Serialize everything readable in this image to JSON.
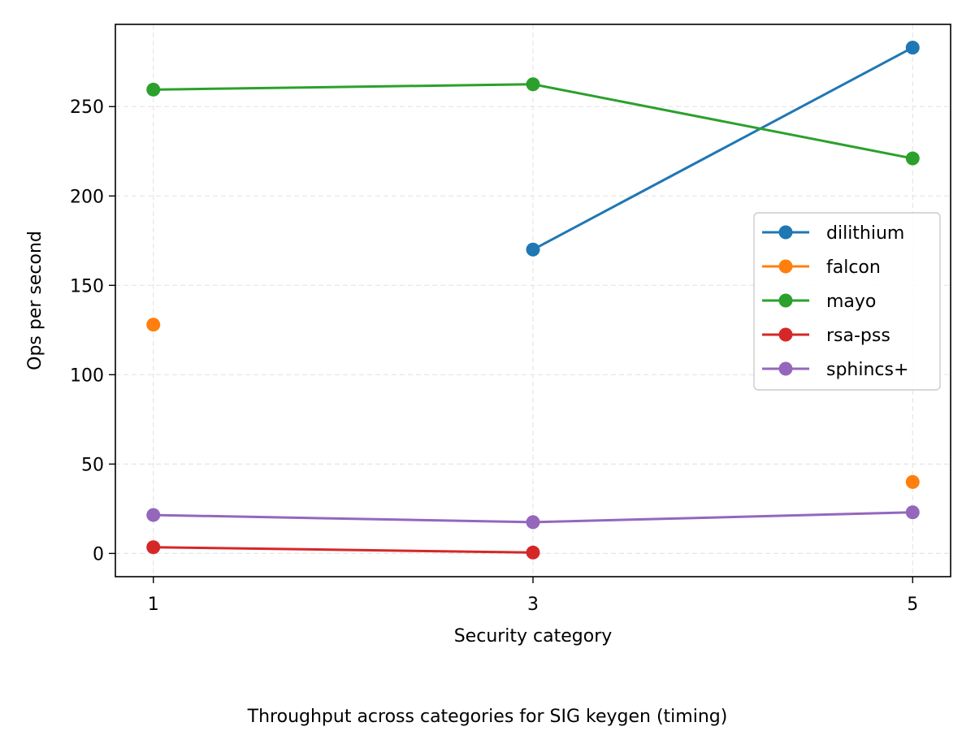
{
  "chart_data": {
    "type": "line",
    "x": [
      1,
      3,
      5
    ],
    "xticks": [
      "1",
      "3",
      "5"
    ],
    "xlabel": "Security category",
    "ylabel": "Ops per second",
    "yticks": [
      0,
      50,
      100,
      150,
      200,
      250
    ],
    "xlim": [
      0.8,
      5.2
    ],
    "ylim": [
      -13,
      296
    ],
    "grid": true,
    "legend_position": "center-right",
    "caption": "Throughput across categories for SIG keygen (timing)",
    "series": [
      {
        "name": "dilithium",
        "color": "#1f77b4",
        "values": [
          null,
          170,
          283
        ]
      },
      {
        "name": "falcon",
        "color": "#ff7f0e",
        "values": [
          128,
          null,
          40
        ]
      },
      {
        "name": "mayo",
        "color": "#2ca02c",
        "values": [
          259.5,
          262.5,
          221
        ]
      },
      {
        "name": "rsa-pss",
        "color": "#d62728",
        "values": [
          3.5,
          0.5,
          null
        ]
      },
      {
        "name": "sphincs+",
        "color": "#9467bd",
        "values": [
          21.5,
          17.5,
          23
        ]
      }
    ]
  }
}
